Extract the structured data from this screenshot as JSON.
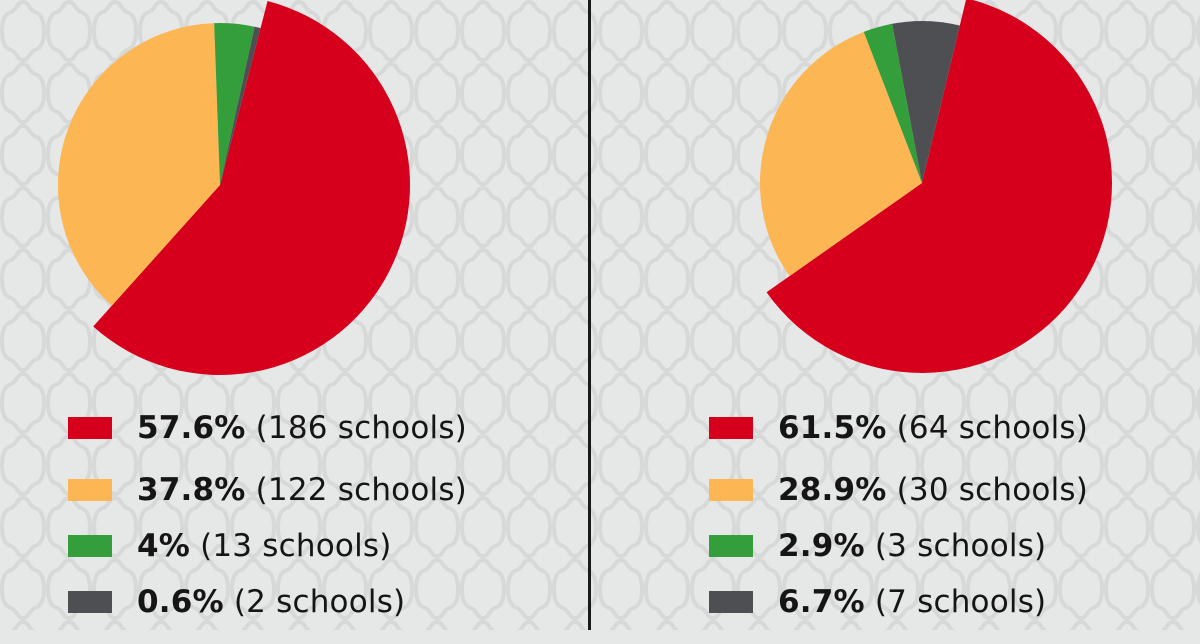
{
  "colors": {
    "red": "#d6001c",
    "yellow": "#fcb653",
    "green": "#339e3a",
    "gray": "#4e4f53",
    "divider": "#1a1a1a",
    "background": "#e6e7e7"
  },
  "chart_data": [
    {
      "type": "pie",
      "title": "",
      "exploded_slice": "57.6%",
      "slices": [
        {
          "label": "57.6%",
          "value": 57.6,
          "count_label": "(186 schools)",
          "count": 186,
          "color": "#d6001c"
        },
        {
          "label": "37.8%",
          "value": 37.8,
          "count_label": "(122 schools)",
          "count": 122,
          "color": "#fcb653"
        },
        {
          "label": "4%",
          "value": 4.0,
          "count_label": "(13 schools)",
          "count": 13,
          "color": "#339e3a"
        },
        {
          "label": "0.6%",
          "value": 0.6,
          "count_label": "(2 schools)",
          "count": 2,
          "color": "#4e4f53"
        }
      ],
      "legend_position": "bottom"
    },
    {
      "type": "pie",
      "title": "",
      "exploded_slice": "61.5%",
      "slices": [
        {
          "label": "61.5%",
          "value": 61.5,
          "count_label": "(64 schools)",
          "count": 64,
          "color": "#d6001c"
        },
        {
          "label": "28.9%",
          "value": 28.9,
          "count_label": "(30 schools)",
          "count": 30,
          "color": "#fcb653"
        },
        {
          "label": "2.9%",
          "value": 2.9,
          "count_label": "(3 schools)",
          "count": 3,
          "color": "#339e3a"
        },
        {
          "label": "6.7%",
          "value": 6.7,
          "count_label": "(7 schools)",
          "count": 7,
          "color": "#4e4f53"
        }
      ],
      "legend_position": "bottom"
    }
  ]
}
